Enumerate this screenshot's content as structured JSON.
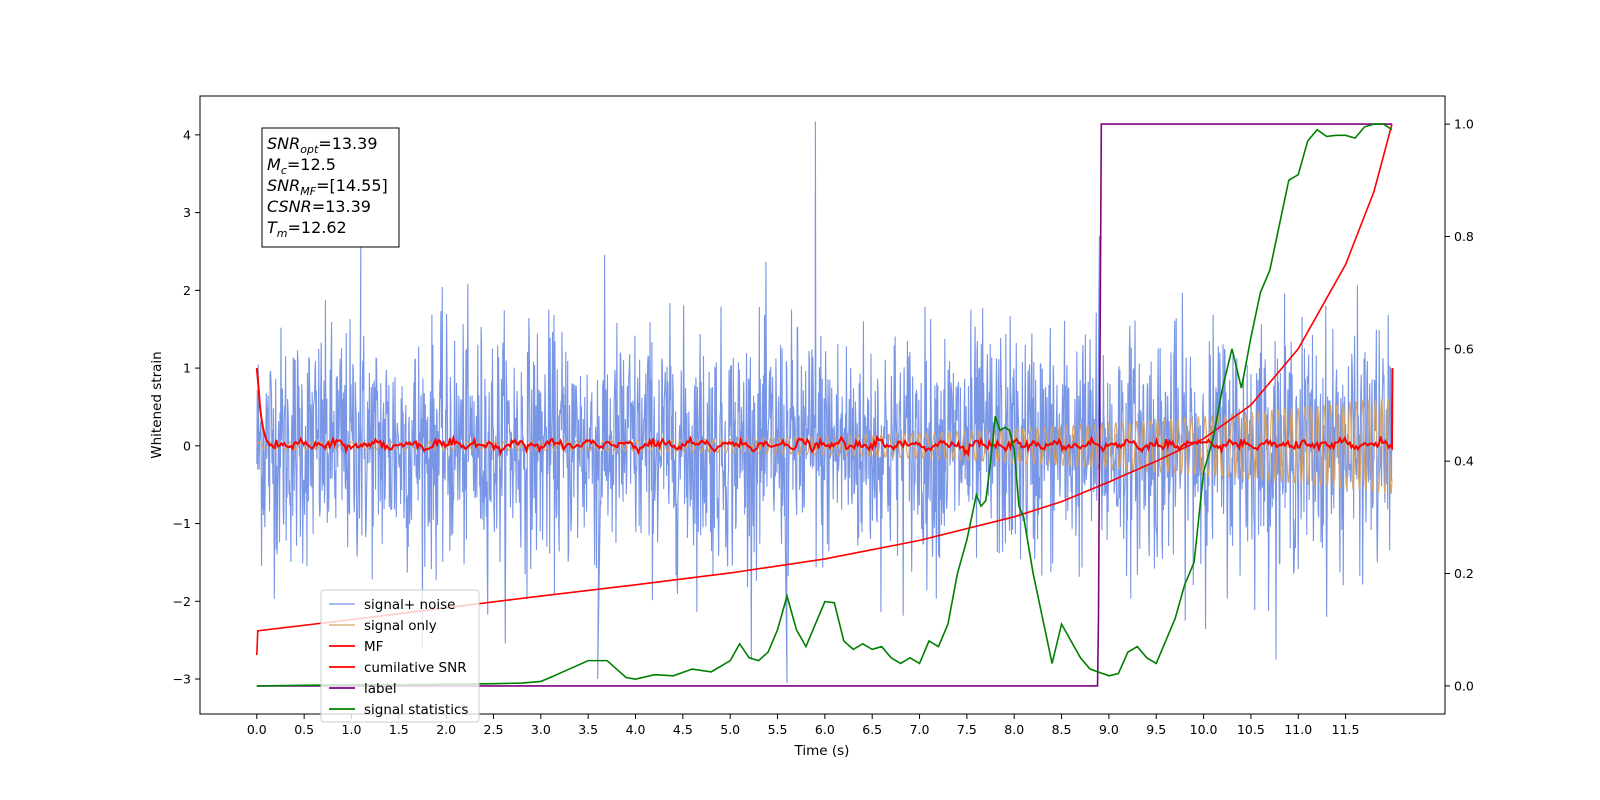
{
  "chart_data": {
    "type": "line",
    "title": "",
    "xlabel": "Time (s)",
    "ylabel": "Whitened strain",
    "y2label": "",
    "xlim": [
      -0.6,
      12.55
    ],
    "ylim": [
      -3.45,
      4.5
    ],
    "y2lim": [
      -0.05,
      1.05
    ],
    "xticks": [
      0.0,
      0.5,
      1.0,
      1.5,
      2.0,
      2.5,
      3.0,
      3.5,
      4.0,
      4.5,
      5.0,
      5.5,
      6.0,
      6.5,
      7.0,
      7.5,
      8.0,
      8.5,
      9.0,
      9.5,
      10.0,
      10.5,
      11.0,
      11.5
    ],
    "xtick_labels": [
      "0.0",
      "0.5",
      "1.0",
      "1.5",
      "2.0",
      "2.5",
      "3.0",
      "3.5",
      "4.0",
      "4.5",
      "5.0",
      "5.5",
      "6.0",
      "6.5",
      "7.0",
      "7.5",
      "8.0",
      "8.5",
      "9.0",
      "9.5",
      "10.0",
      "10.5",
      "11.0",
      "11.5"
    ],
    "yticks": [
      -3,
      -2,
      -1,
      0,
      1,
      2,
      3,
      4
    ],
    "ytick_labels": [
      "−3",
      "−2",
      "−1",
      "0",
      "1",
      "2",
      "3",
      "4"
    ],
    "y2ticks": [
      0.0,
      0.2,
      0.4,
      0.6,
      0.8,
      1.0
    ],
    "y2tick_labels": [
      "0.0",
      "0.2",
      "0.4",
      "0.6",
      "0.8",
      "1.0"
    ],
    "grid": false,
    "legend_position": "lower-left",
    "annotation": [
      {
        "name": "SNR",
        "sub": "opt",
        "value": "=13.39"
      },
      {
        "name": "M",
        "sub": "c",
        "value": "=12.5"
      },
      {
        "name": "SNR",
        "sub": "MF",
        "value": "=[14.55]"
      },
      {
        "name": "CSNR",
        "sub": "",
        "value": "=13.39"
      },
      {
        "name": "T",
        "sub": "m",
        "value": "=12.62"
      }
    ],
    "series": [
      {
        "name": "signal+ noise",
        "color": "#7593e6",
        "axis": "left",
        "kind": "noise",
        "x_range": [
          0.0,
          11.99
        ],
        "spread_sd": 0.75,
        "max": 4.17,
        "min": -3.05
      },
      {
        "name": "signal only",
        "color": "#d7a465",
        "axis": "left",
        "kind": "chirp",
        "x_range": [
          0.0,
          11.99
        ],
        "amplitude_start": 0.05,
        "amplitude_end": 0.62
      },
      {
        "name": "MF",
        "color": "#ff0000",
        "axis": "left",
        "kind": "mf",
        "x_range": [
          0.0,
          11.99
        ],
        "start": 1.0,
        "end": 1.0
      },
      {
        "name": "cumilative SNR",
        "color": "#ff0000",
        "axis": "right",
        "x": [
          0.0,
          0.01,
          1.0,
          2.0,
          3.0,
          4.0,
          5.0,
          6.0,
          7.0,
          8.0,
          8.5,
          9.0,
          9.5,
          10.0,
          10.5,
          11.0,
          11.5,
          11.8,
          11.99
        ],
        "y": [
          0.055,
          0.098,
          0.118,
          0.139,
          0.16,
          0.18,
          0.201,
          0.226,
          0.259,
          0.301,
          0.328,
          0.363,
          0.4,
          0.44,
          0.5,
          0.6,
          0.75,
          0.88,
          1.0
        ]
      },
      {
        "name": "label",
        "color": "#800080",
        "axis": "right",
        "x": [
          0.0,
          8.88,
          8.89,
          8.92,
          11.99
        ],
        "y": [
          0.0,
          0.0,
          0.12,
          1.0,
          1.0
        ]
      },
      {
        "name": "signal statistics",
        "color": "#008000",
        "axis": "right",
        "x": [
          0.0,
          0.5,
          1.0,
          1.5,
          2.0,
          2.5,
          2.8,
          3.0,
          3.1,
          3.3,
          3.5,
          3.7,
          3.8,
          3.9,
          4.0,
          4.2,
          4.4,
          4.6,
          4.8,
          5.0,
          5.1,
          5.2,
          5.3,
          5.4,
          5.5,
          5.6,
          5.7,
          5.8,
          5.9,
          6.0,
          6.1,
          6.2,
          6.3,
          6.4,
          6.5,
          6.6,
          6.7,
          6.8,
          6.9,
          7.0,
          7.1,
          7.2,
          7.3,
          7.4,
          7.5,
          7.6,
          7.65,
          7.7,
          7.75,
          7.8,
          7.85,
          7.9,
          7.95,
          8.0,
          8.05,
          8.1,
          8.2,
          8.3,
          8.4,
          8.5,
          8.6,
          8.7,
          8.8,
          9.0,
          9.1,
          9.2,
          9.3,
          9.4,
          9.5,
          9.6,
          9.7,
          9.8,
          9.9,
          10.0,
          10.1,
          10.2,
          10.3,
          10.4,
          10.5,
          10.6,
          10.7,
          10.8,
          10.9,
          11.0,
          11.1,
          11.2,
          11.3,
          11.4,
          11.5,
          11.6,
          11.7,
          11.8,
          11.9,
          11.99
        ],
        "y": [
          0.0,
          0.001,
          0.002,
          0.002,
          0.003,
          0.004,
          0.005,
          0.008,
          0.015,
          0.03,
          0.045,
          0.045,
          0.03,
          0.015,
          0.012,
          0.02,
          0.018,
          0.03,
          0.025,
          0.045,
          0.075,
          0.05,
          0.045,
          0.06,
          0.1,
          0.16,
          0.1,
          0.07,
          0.11,
          0.15,
          0.148,
          0.08,
          0.065,
          0.075,
          0.065,
          0.07,
          0.05,
          0.04,
          0.05,
          0.04,
          0.08,
          0.07,
          0.11,
          0.2,
          0.26,
          0.34,
          0.32,
          0.33,
          0.4,
          0.48,
          0.455,
          0.46,
          0.455,
          0.42,
          0.32,
          0.3,
          0.2,
          0.12,
          0.04,
          0.11,
          0.08,
          0.05,
          0.03,
          0.018,
          0.022,
          0.06,
          0.07,
          0.05,
          0.04,
          0.08,
          0.12,
          0.18,
          0.22,
          0.38,
          0.44,
          0.53,
          0.6,
          0.53,
          0.62,
          0.7,
          0.74,
          0.82,
          0.9,
          0.91,
          0.97,
          0.99,
          0.978,
          0.98,
          0.98,
          0.975,
          0.995,
          1.0,
          1.0,
          0.99
        ]
      }
    ]
  }
}
